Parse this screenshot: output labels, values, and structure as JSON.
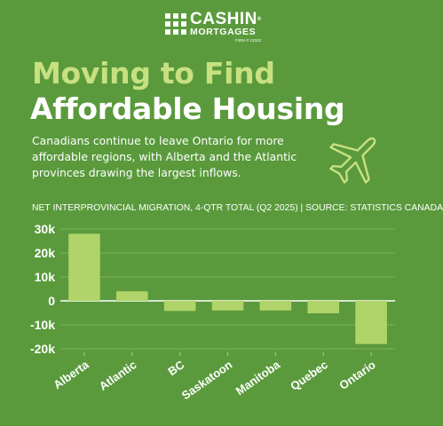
{
  "brand": {
    "name": "CASHIN",
    "trademark": "®",
    "sub": "MORTGAGES",
    "license": "FSRA # 13343"
  },
  "header": {
    "title_line1": "Moving to Find",
    "title_line2": "Affordable Housing",
    "subtitle": "Canadians continue to leave Ontario for more affordable regions, with Alberta and the Atlantic provinces drawing the largest inflows.",
    "plane_icon": "airplane-icon"
  },
  "colors": {
    "background": "#5a9a3c",
    "accent": "#c7e080",
    "bar": "#b0d46a",
    "text": "#ffffff"
  },
  "chart_data": {
    "type": "bar",
    "title": "NET INTERPROVINCIAL MIGRATION, 4-QTR TOTAL (Q2 2025) | SOURCE: STATISTICS CANADA",
    "categories": [
      "Alberta",
      "Atlantic",
      "BC",
      "Saskatoon",
      "Manitoba",
      "Quebec",
      "Ontario"
    ],
    "values": [
      28000,
      4000,
      -4200,
      -4000,
      -4000,
      -5200,
      -18000
    ],
    "yticks": [
      30000,
      20000,
      10000,
      0,
      -10000,
      -20000
    ],
    "ytick_labels": [
      "30k",
      "20k",
      "10k",
      "0",
      "-10k",
      "-20k"
    ],
    "ylim": [
      -20000,
      30000
    ],
    "grid": true
  }
}
